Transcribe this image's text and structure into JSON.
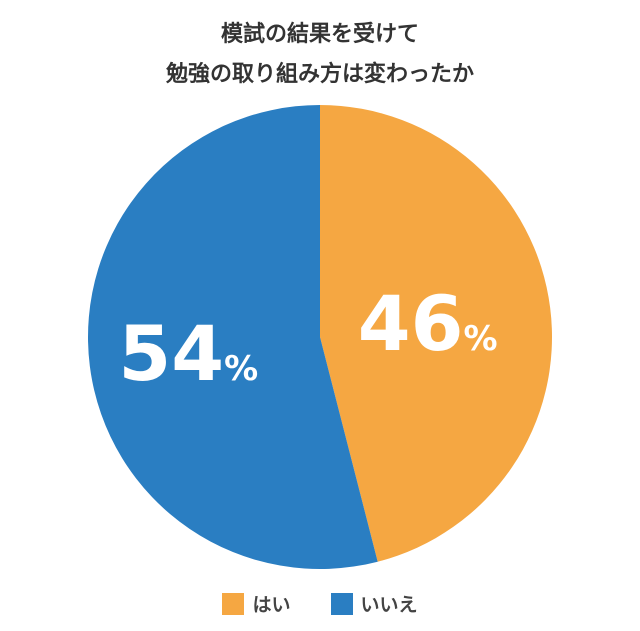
{
  "chart_data": {
    "type": "pie",
    "title": [
      "模試の結果を受けて",
      "勉強の取り組み方は変わったか"
    ],
    "slices": [
      {
        "label": "はい",
        "value": 46,
        "display": "46",
        "color": "#F5A742"
      },
      {
        "label": "いいえ",
        "value": 54,
        "display": "54",
        "color": "#2A7EC2"
      }
    ],
    "unit": "%",
    "legend": "bottom"
  }
}
